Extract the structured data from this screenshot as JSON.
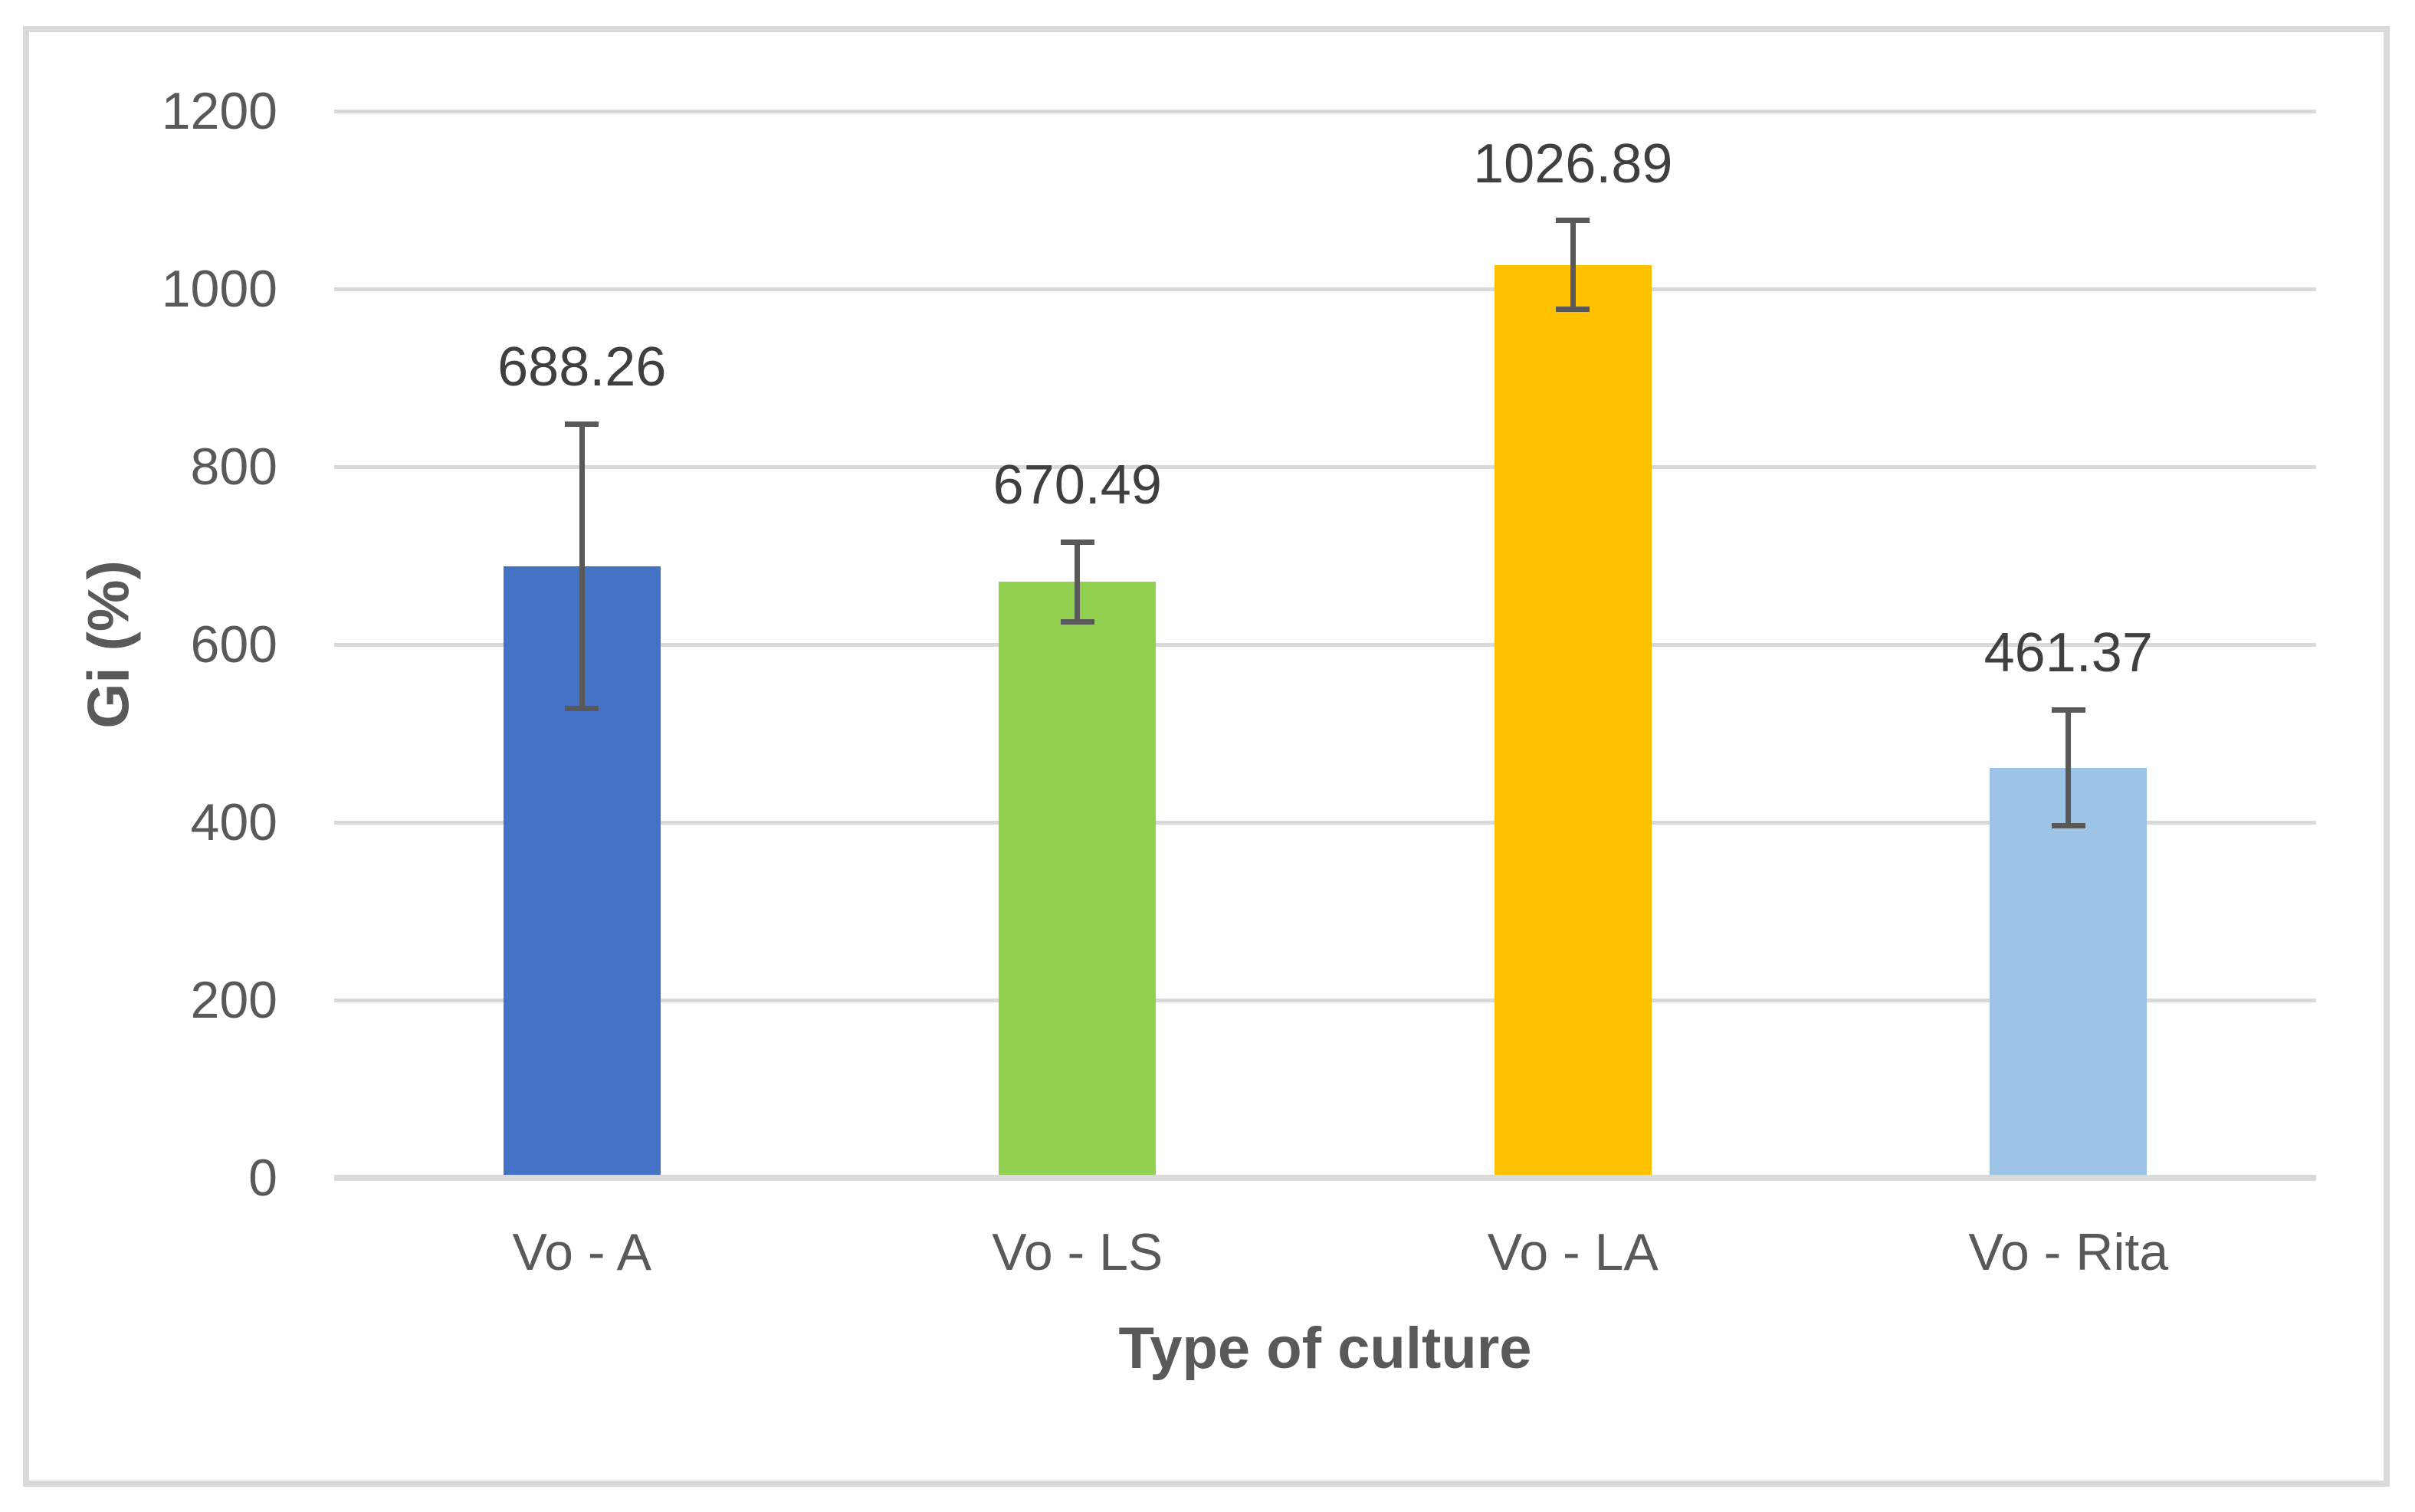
{
  "chart_data": {
    "type": "bar",
    "title": "",
    "xlabel": "Type of culture",
    "ylabel": "Gi (%)",
    "categories": [
      "Vo - A",
      "Vo - LS",
      "Vo - LA",
      "Vo - Rita"
    ],
    "values": [
      688.26,
      670.49,
      1026.89,
      461.37
    ],
    "data_labels": [
      "688.26",
      "670.49",
      "1026.89",
      "461.37"
    ],
    "error_bars_plus_minus": [
      160,
      45,
      50,
      65
    ],
    "series": [
      {
        "name": "Gi (%)",
        "values": [
          688.26,
          670.49,
          1026.89,
          461.37
        ]
      }
    ],
    "bar_colors": [
      "#4472C4",
      "#92D050",
      "#FFC000",
      "#9DC3E6"
    ],
    "ylim": [
      0,
      1200
    ],
    "ytick_interval": 200,
    "ytick_labels": [
      "0",
      "200",
      "400",
      "600",
      "800",
      "1000",
      "1200"
    ],
    "grid": "horizontal-only",
    "legend": "none"
  },
  "colors": {
    "gridline": "#d9d9d9",
    "axis_line": "#d9d9d9",
    "chart_border": "#d9d9d9",
    "error_bar": "#595959",
    "tick_text": "#595959",
    "data_label_text": "#3f3f3f",
    "axis_title_text": "#595959",
    "background": "#ffffff"
  }
}
